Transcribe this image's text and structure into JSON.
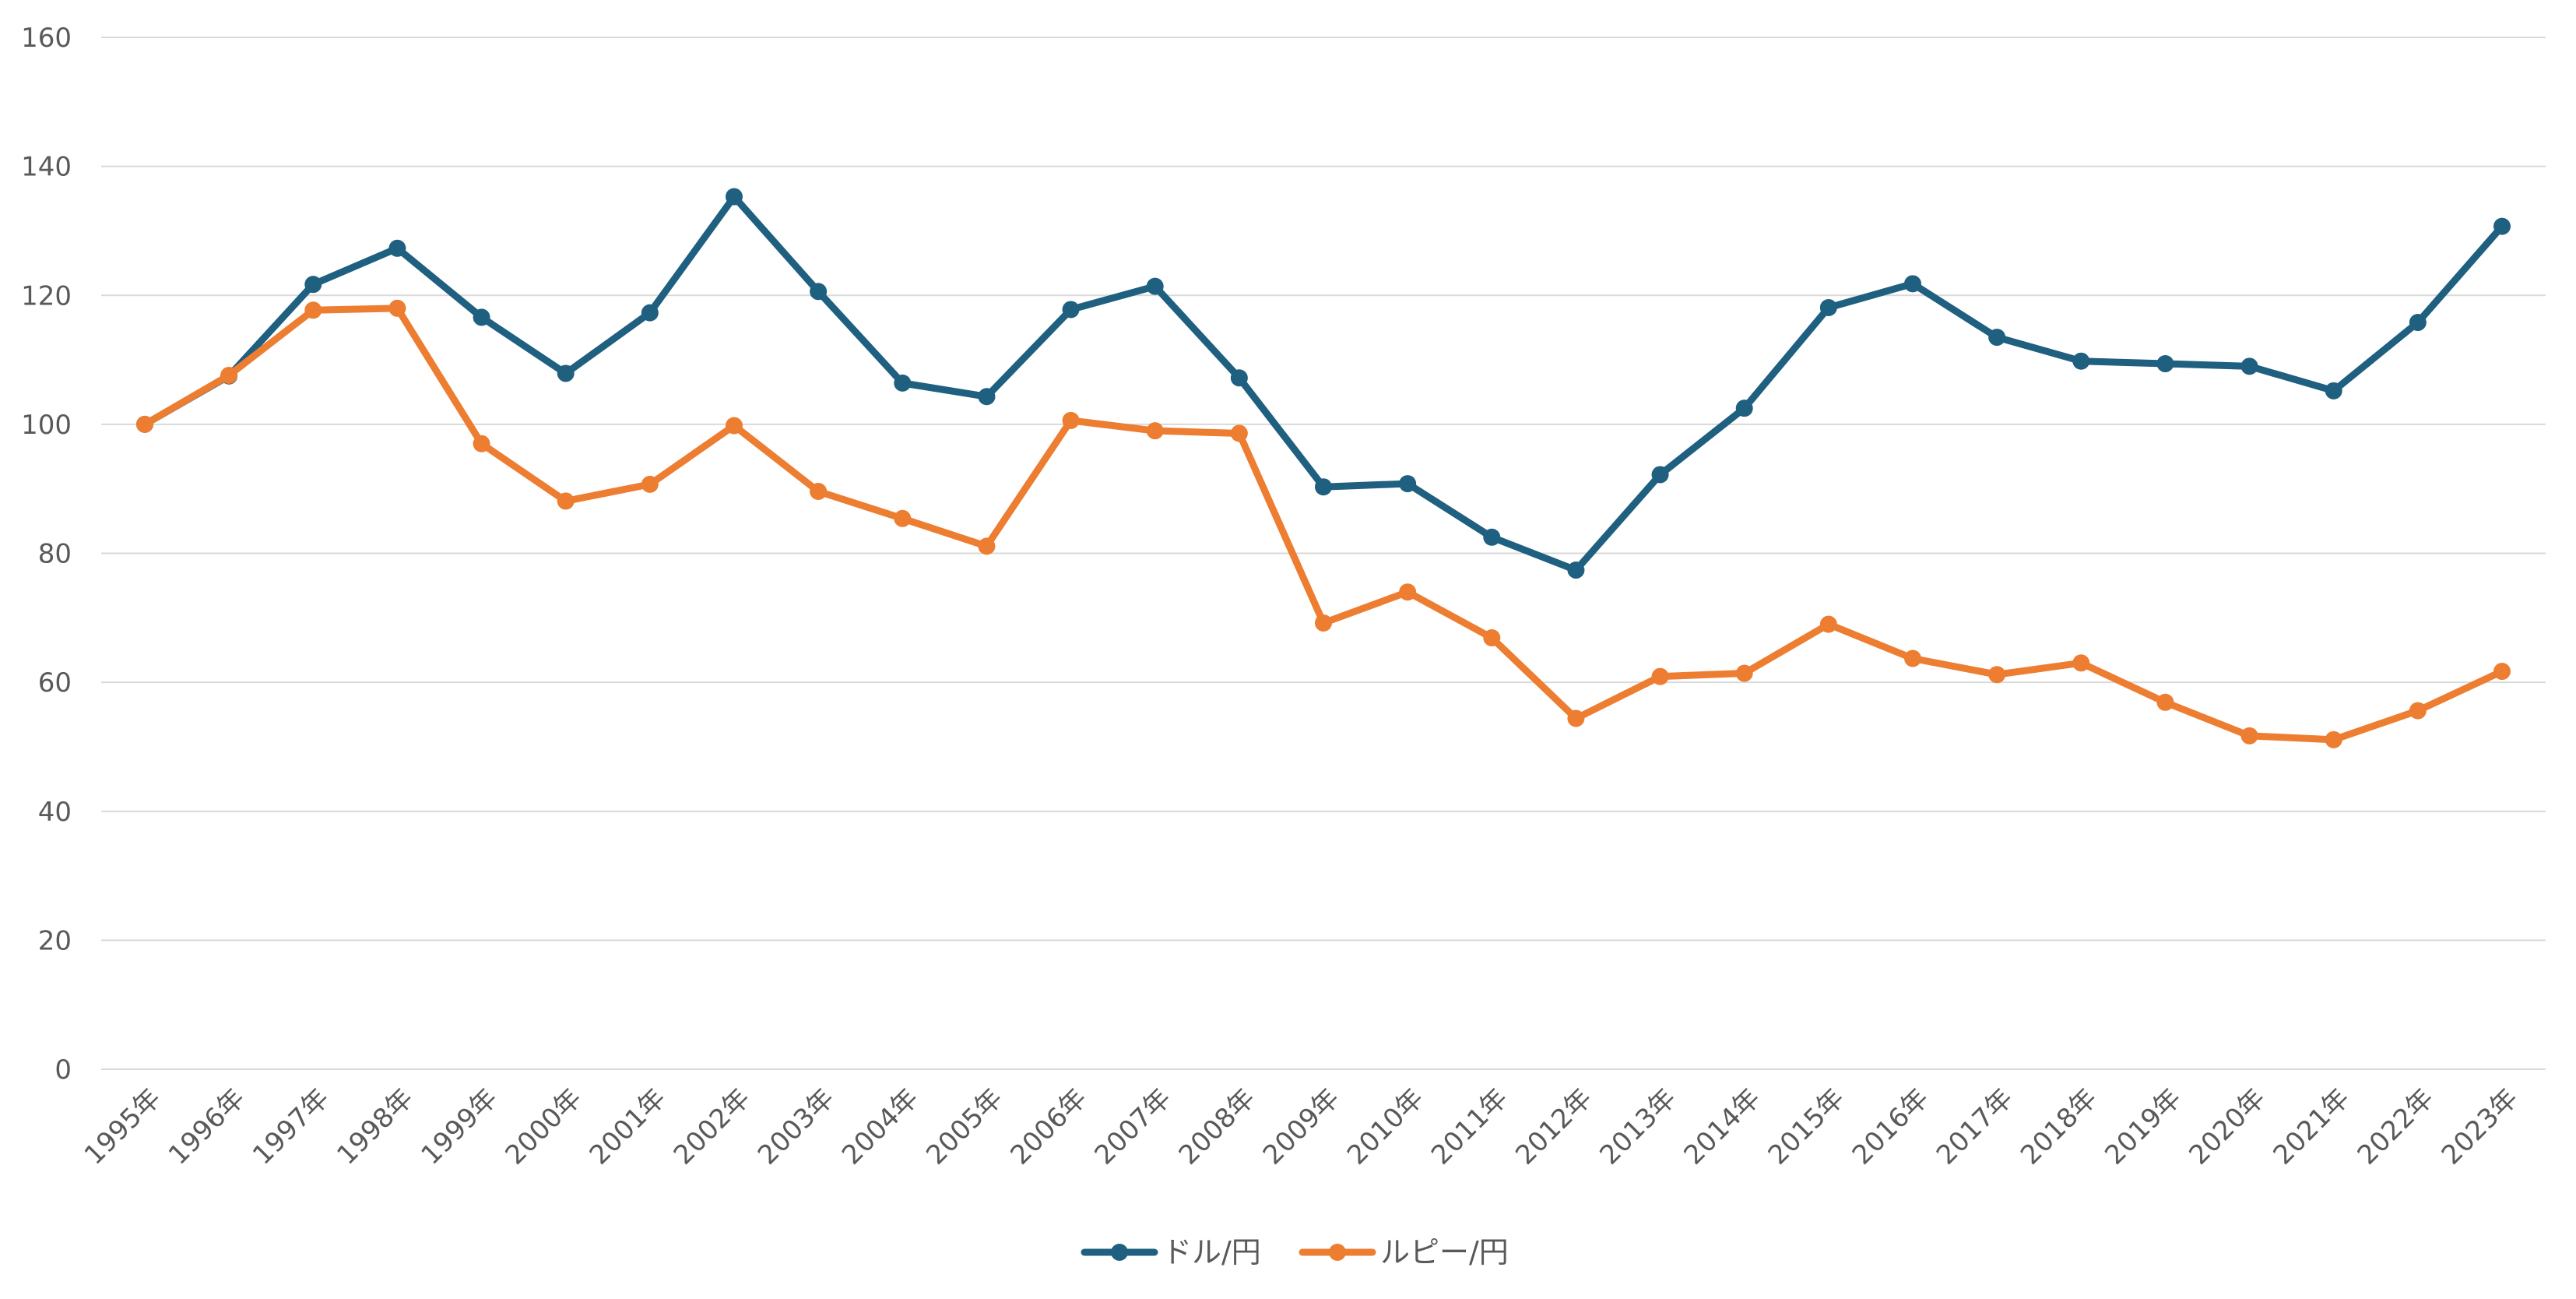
{
  "chart_data": {
    "type": "line",
    "title": "",
    "xlabel": "",
    "ylabel": "",
    "ylim": [
      0,
      160
    ],
    "yticks": [
      "0",
      "20",
      "40",
      "60",
      "80",
      "100",
      "120",
      "140",
      "160"
    ],
    "grid": true,
    "legend_position": "bottom",
    "categories": [
      "1995年",
      "1996年",
      "1997年",
      "1998年",
      "1999年",
      "2000年",
      "2001年",
      "2002年",
      "2003年",
      "2004年",
      "2005年",
      "2006年",
      "2007年",
      "2008年",
      "2009年",
      "2010年",
      "2011年",
      "2012年",
      "2013年",
      "2014年",
      "2015年",
      "2016年",
      "2017年",
      "2018年",
      "2019年",
      "2020年",
      "2021年",
      "2022年",
      "2023年"
    ],
    "series": [
      {
        "name": "ドル/円",
        "color": "#1f5f7f",
        "values": [
          100,
          107.5,
          121.7,
          127.3,
          116.6,
          107.9,
          117.3,
          135.3,
          120.6,
          106.4,
          104.3,
          117.8,
          121.4,
          107.2,
          90.3,
          90.8,
          82.5,
          77.4,
          92.2,
          102.5,
          118.1,
          121.8,
          113.5,
          109.8,
          109.4,
          109.0,
          105.2,
          115.8,
          130.7
        ]
      },
      {
        "name": "ルピー/円",
        "color": "#ed7d31",
        "values": [
          100,
          107.6,
          117.7,
          118.0,
          97.0,
          88.1,
          90.7,
          99.8,
          89.6,
          85.4,
          81.1,
          100.6,
          99.0,
          98.6,
          69.2,
          74.0,
          66.9,
          54.4,
          60.9,
          61.4,
          69.0,
          63.7,
          61.2,
          63.0,
          56.9,
          51.7,
          51.1,
          55.6,
          61.7
        ]
      }
    ]
  }
}
